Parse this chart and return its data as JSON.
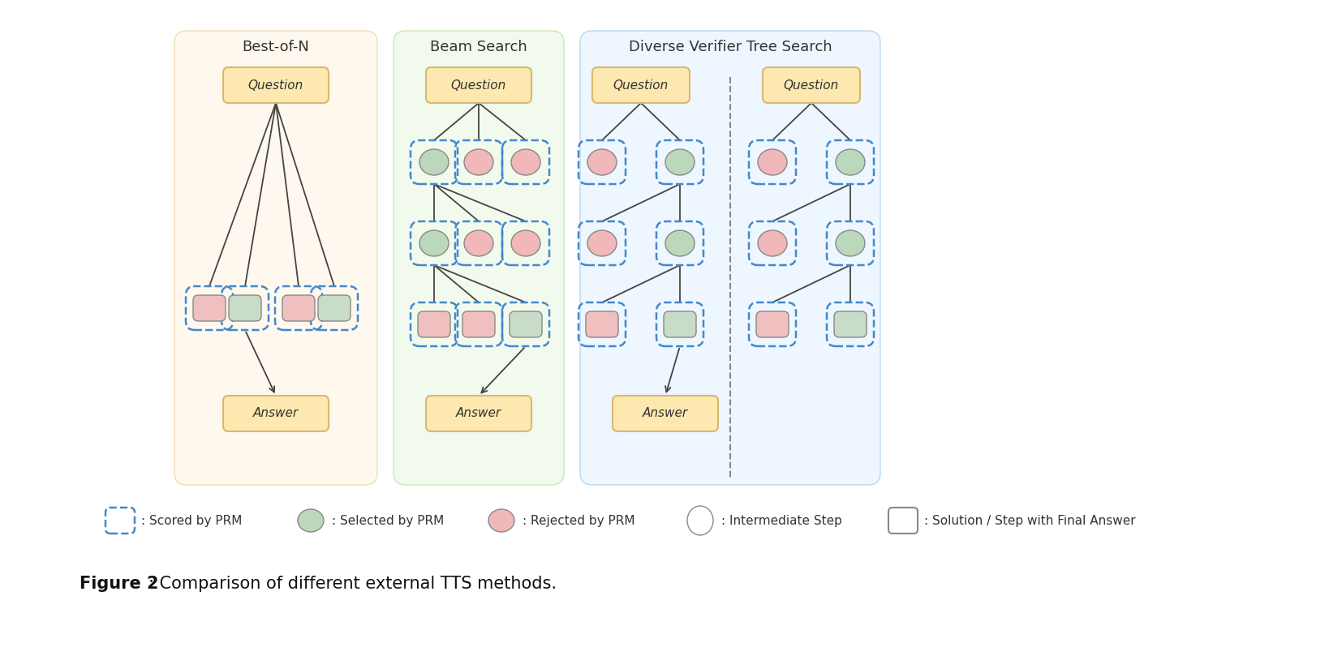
{
  "sections": [
    {
      "label": "Best-of-N",
      "bg_color": "#fff8ee",
      "border_color": "#f0ddb0"
    },
    {
      "label": "Beam Search",
      "bg_color": "#f2faee",
      "border_color": "#c8e8b0"
    },
    {
      "label": "Diverse Verifier Tree Search",
      "bg_color": "#eef6ff",
      "border_color": "#b8d8f0"
    }
  ],
  "question_box_color": "#fde8b0",
  "question_box_edge": "#d8b870",
  "answer_box_color": "#fde8b0",
  "answer_box_edge": "#d8b870",
  "green_node_color": "#bcd8bc",
  "pink_node_color": "#f0b8b8",
  "green_rect_color": "#c8dcc8",
  "pink_rect_color": "#f0c0c0",
  "dashed_rect_color": "#4488cc",
  "line_color": "#444444",
  "divider_color": "#888888",
  "legend_items": [
    {
      "type": "dashed_rect",
      "label": ": Scored by PRM"
    },
    {
      "type": "green_ellipse",
      "label": ": Selected by PRM"
    },
    {
      "type": "pink_ellipse",
      "label": ": Rejected by PRM"
    },
    {
      "type": "white_ellipse",
      "label": ": Intermediate Step"
    },
    {
      "type": "white_rect",
      "label": ": Solution / Step with Final Answer"
    }
  ],
  "caption_bold": "Figure 2",
  "caption_rest": ": Comparison of different external TTS methods."
}
